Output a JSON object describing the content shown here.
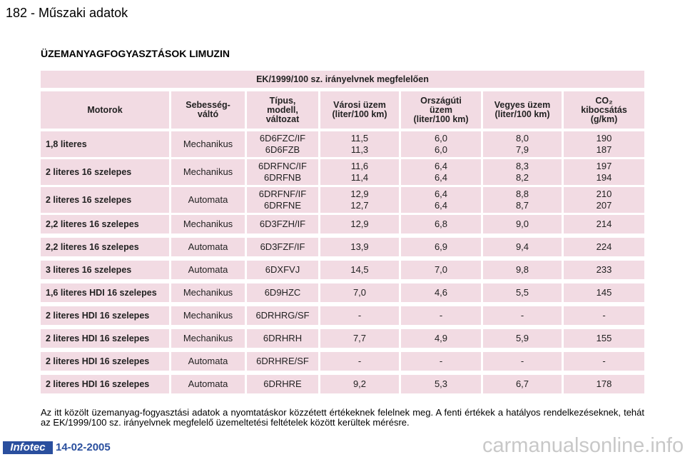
{
  "header": {
    "page": "182 - Műszaki adatok"
  },
  "title": "ÜZEMANYAGFOGYASZTÁSOK LIMUZIN",
  "table": {
    "caption": "EK/1999/100 sz. irányelvnek megfelelően",
    "columns": [
      [
        "Motorok"
      ],
      [
        "Sebesség-",
        "váltó"
      ],
      [
        "Típus,",
        "modell,",
        "változat"
      ],
      [
        "Városi üzem",
        "(liter/100 km)"
      ],
      [
        "Országúti",
        "üzem",
        "(liter/100 km)"
      ],
      [
        "Vegyes üzem",
        "(liter/100 km)"
      ],
      [
        "CO₂",
        "kibocsátás",
        "(g/km)"
      ]
    ],
    "rows": [
      [
        "1,8 literes",
        "Mechanikus",
        [
          "6D6FZC/IF",
          "6D6FZB"
        ],
        [
          "11,5",
          "11,3"
        ],
        [
          "6,0",
          "6,0"
        ],
        [
          "8,0",
          "7,9"
        ],
        [
          "190",
          "187"
        ]
      ],
      [
        "2 literes 16 szelepes",
        "Mechanikus",
        [
          "6DRFNC/IF",
          "6DRFNB"
        ],
        [
          "11,6",
          "11,4"
        ],
        [
          "6,4",
          "6,4"
        ],
        [
          "8,3",
          "8,2"
        ],
        [
          "197",
          "194"
        ]
      ],
      [
        "2 literes 16 szelepes",
        "Automata",
        [
          "6DRFNF/IF",
          "6DRFNE"
        ],
        [
          "12,9",
          "12,7"
        ],
        [
          "6,4",
          "6,4"
        ],
        [
          "8,8",
          "8,7"
        ],
        [
          "210",
          "207"
        ]
      ],
      [
        "2,2 literes 16 szelepes",
        "Mechanikus",
        "6D3FZH/IF",
        "12,9",
        "6,8",
        "9,0",
        "214"
      ],
      [
        "2,2 literes 16 szelepes",
        "Automata",
        "6D3FZF/IF",
        "13,9",
        "6,9",
        "9,4",
        "224"
      ],
      [
        "3 literes 16 szelepes",
        "Automata",
        "6DXFVJ",
        "14,5",
        "7,0",
        "9,8",
        "233"
      ],
      [
        "1,6 literes HDI 16 szelepes",
        "Mechanikus",
        "6D9HZC",
        "7,0",
        "4,6",
        "5,5",
        "145"
      ],
      [
        "2 literes HDI 16 szelepes",
        "Mechanikus",
        "6DRHRG/SF",
        "-",
        "-",
        "-",
        "-"
      ],
      [
        "2 literes HDI 16 szelepes",
        "Mechanikus",
        "6DRHRH",
        "7,7",
        "4,9",
        "5,9",
        "155"
      ],
      [
        "2 literes HDI 16 szelepes",
        "Automata",
        "6DRHRE/SF",
        "-",
        "-",
        "-",
        "-"
      ],
      [
        "2 literes HDI 16 szelepes",
        "Automata",
        "6DRHRE",
        "9,2",
        "5,3",
        "6,7",
        "178"
      ]
    ]
  },
  "note": "Az itt közölt üzemanyag-fogyasztási adatok a nyomtatáskor közzétett értékeknek felelnek meg. A fenti értékek a hatályos rendelkezéseknek, tehát az EK/1999/100 sz. irányelvnek megfelelő üzemeltetési feltételek között kerültek mérésre.",
  "footer": {
    "logo": "Infotec",
    "date": "14-02-2005",
    "watermark": "carmanualsonline.info"
  }
}
